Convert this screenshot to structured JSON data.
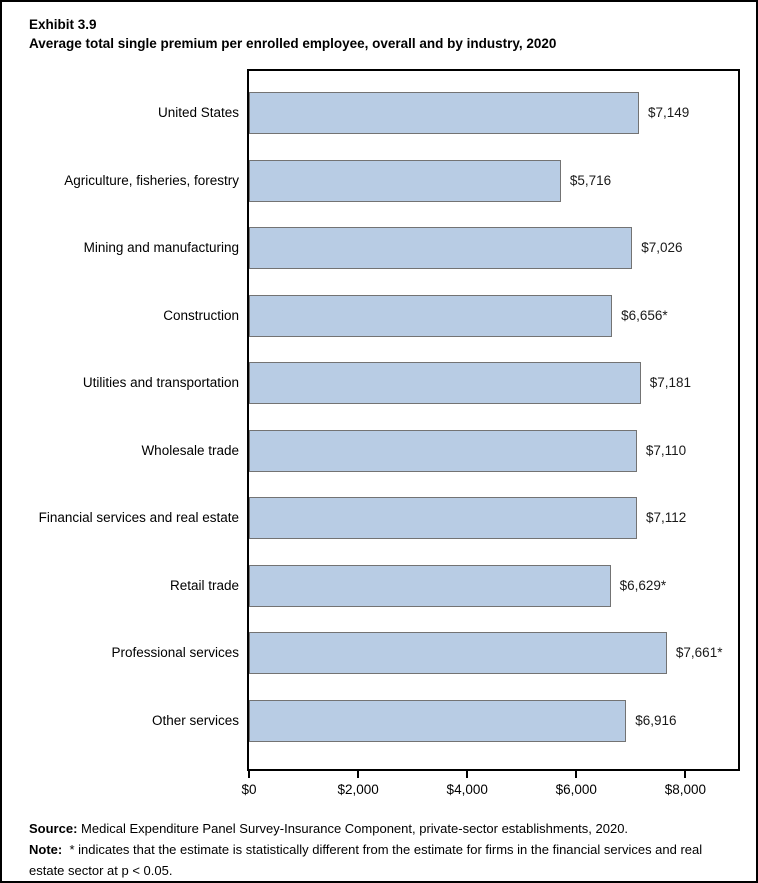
{
  "title": {
    "exhibit": "Exhibit 3.9",
    "text": "Average total single premium per enrolled employee, overall and by industry, 2020"
  },
  "chart_data": {
    "type": "bar",
    "orientation": "horizontal",
    "title": "Average total single premium per enrolled employee, overall and by industry, 2020",
    "categories": [
      "United States",
      "Agriculture, fisheries, forestry",
      "Mining and manufacturing",
      "Construction",
      "Utilities and transportation",
      "Wholesale trade",
      "Financial services and real estate",
      "Retail trade",
      "Professional services",
      "Other services"
    ],
    "values": [
      7149,
      5716,
      7026,
      6656,
      7181,
      7110,
      7112,
      6629,
      7661,
      6916
    ],
    "value_labels": [
      "$7,149",
      "$5,716",
      "$7,026",
      "$6,656*",
      "$7,181",
      "$7,110",
      "$7,112",
      "$6,629*",
      "$7,661*",
      "$6,916"
    ],
    "x_ticks": [
      0,
      2000,
      4000,
      6000,
      8000
    ],
    "x_tick_labels": [
      "$0",
      "$2,000",
      "$4,000",
      "$6,000",
      "$8,000"
    ],
    "xlim": [
      0,
      8964
    ],
    "xlabel": "",
    "ylabel": "",
    "grid": false,
    "legend": false,
    "bar_color": "#b8cce4",
    "bar_border_color": "#737373"
  },
  "footer": {
    "source_label": "Source:",
    "source_text": "Medical Expenditure Panel Survey-Insurance Component, private-sector establishments, 2020.",
    "note_label": "Note:",
    "note_text": "* indicates that the estimate is statistically different from the estimate for firms in the financial services and real estate sector at p < 0.05."
  }
}
